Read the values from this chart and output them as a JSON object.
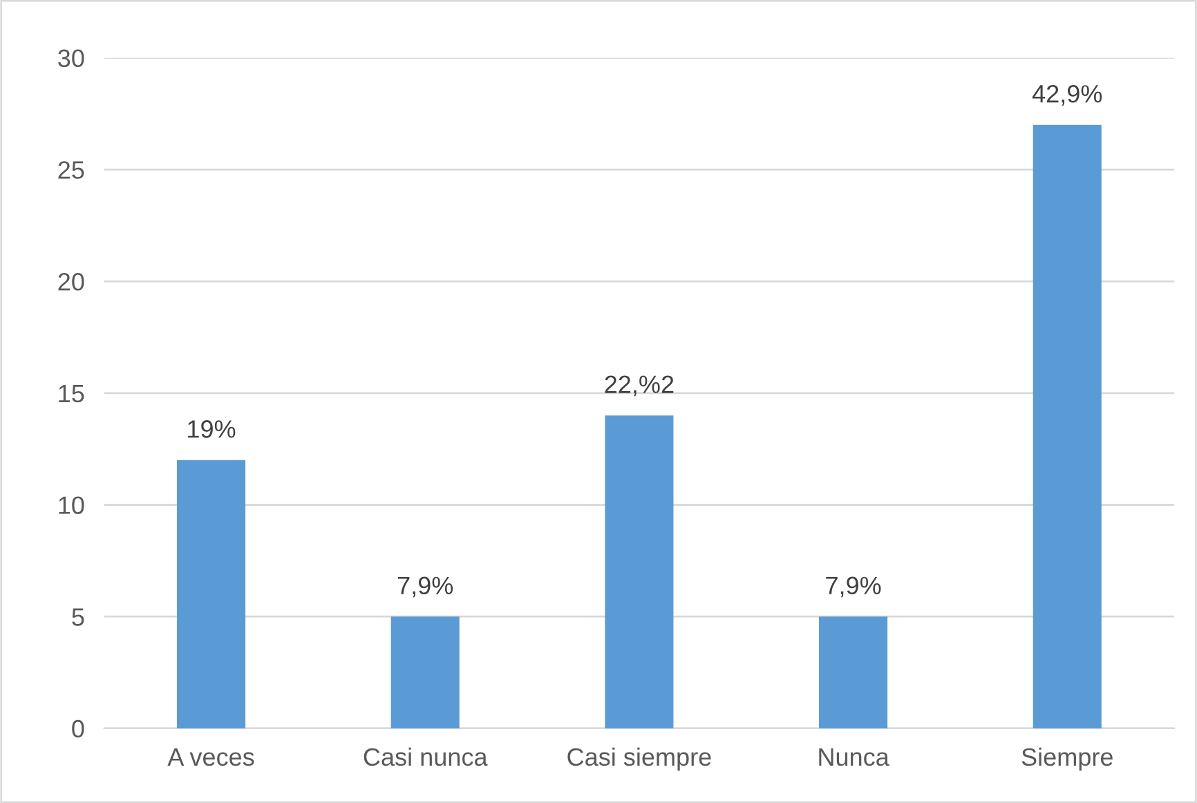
{
  "chart_data": {
    "type": "bar",
    "categories": [
      "A veces",
      "Casi nunca",
      "Casi siempre",
      "Nunca",
      "Siempre"
    ],
    "values": [
      12,
      5,
      14,
      5,
      27
    ],
    "annotations": [
      {
        "text": "19%",
        "x": "A veces",
        "y": 12
      },
      {
        "text": "7,9%",
        "x": "Casi nunca",
        "y": 5
      },
      {
        "text": "22,%2",
        "x": "Casi siempre",
        "y": 14
      },
      {
        "text": "7,9%",
        "x": "Nunca",
        "y": 5
      },
      {
        "text": "42,9%",
        "x": "Siempre",
        "y": 27
      }
    ],
    "color": "#5b9bd5",
    "ylim": [
      0,
      30
    ],
    "yticks": [
      0,
      5,
      10,
      15,
      20,
      25,
      30
    ],
    "grid": "y",
    "legend": false
  }
}
